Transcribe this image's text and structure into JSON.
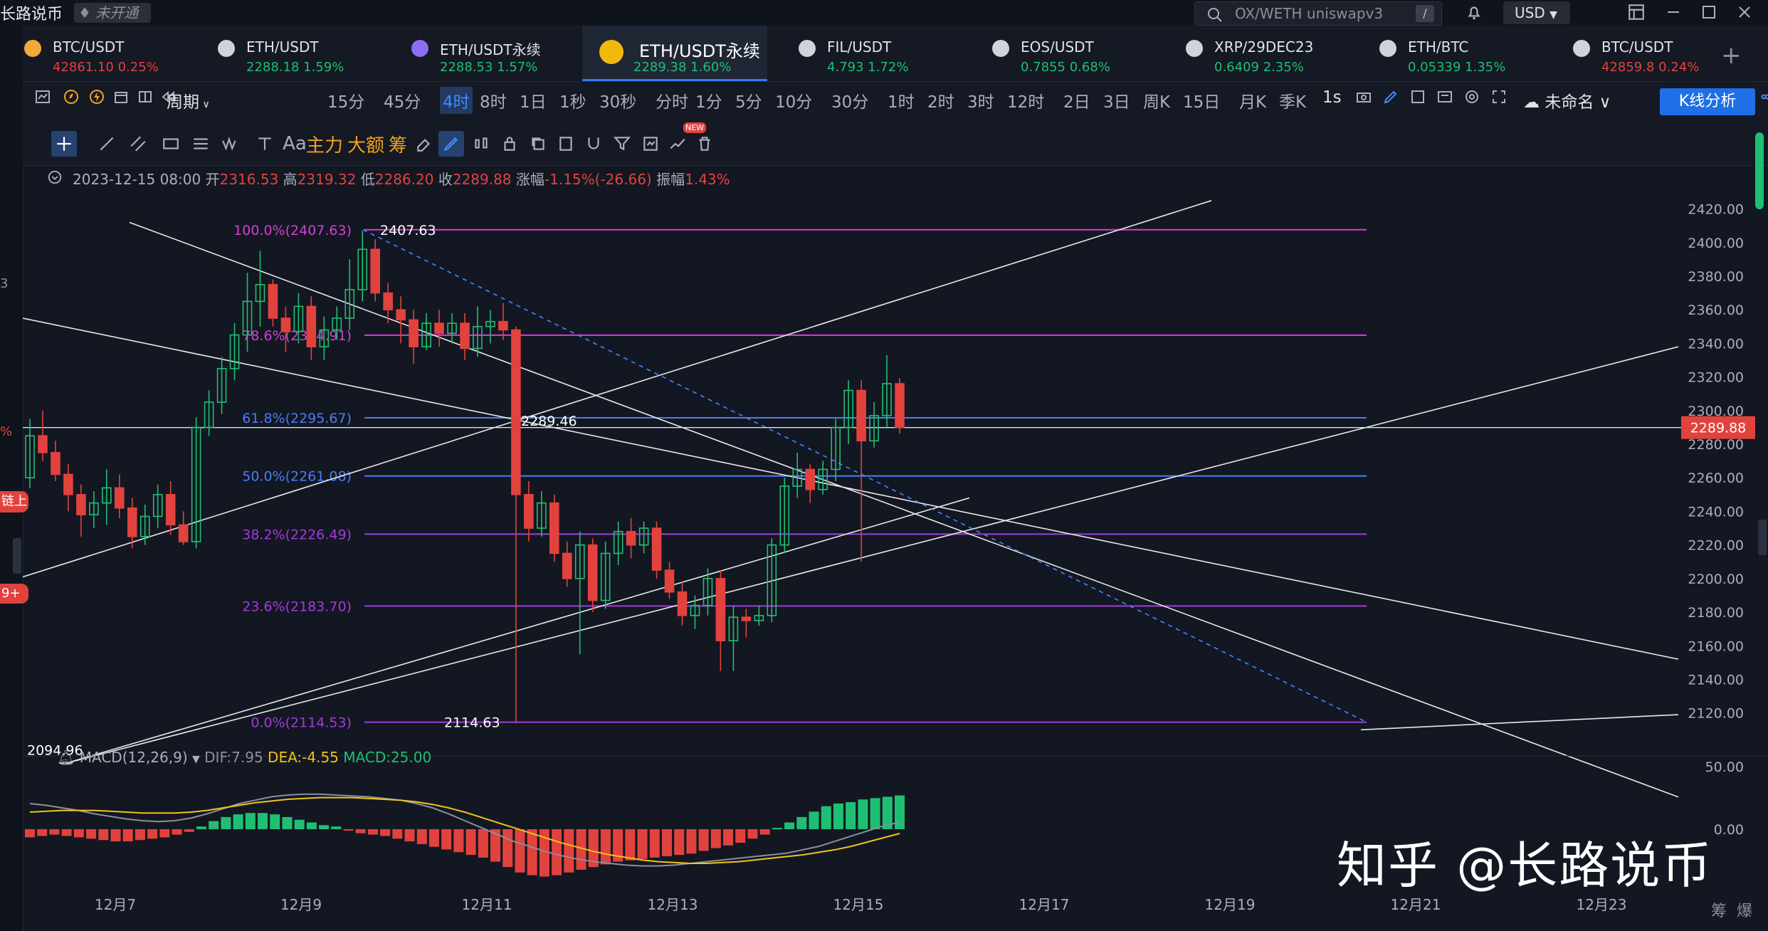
{
  "top": {
    "app_title": "长路说币",
    "status_badge": "未开通",
    "search_placeholder": "OX/WETH uniswapv3",
    "search_shortcut": "/",
    "currency": "USD"
  },
  "left_strip": {
    "tags": [
      "链上",
      "9+"
    ],
    "marks": [
      "%",
      "3"
    ]
  },
  "tickers": [
    {
      "symbol": "BTC/USDT",
      "price": "42861.10",
      "change": "0.25%",
      "color": "#e2423d",
      "icon_color": "#f2a93b"
    },
    {
      "symbol": "ETH/USDT",
      "price": "2288.18",
      "change": "1.59%",
      "color": "#1fbf73",
      "icon_color": "#cfd3da"
    },
    {
      "symbol": "ETH/USDT永续",
      "price": "2288.53",
      "change": "1.57%",
      "color": "#1fbf73",
      "icon_color": "#8f6cf5"
    },
    {
      "symbol": "ETH/USDT永续",
      "price": "2289.38",
      "change": "1.60%",
      "color": "#1fbf73",
      "icon_color": "#f0b90b",
      "active": true
    },
    {
      "symbol": "FIL/USDT",
      "price": "4.793",
      "change": "1.72%",
      "color": "#1fbf73",
      "icon_color": "#cfd3da"
    },
    {
      "symbol": "EOS/USDT",
      "price": "0.7855",
      "change": "0.68%",
      "color": "#1fbf73",
      "icon_color": "#cfd3da"
    },
    {
      "symbol": "XRP/29DEC23",
      "price": "0.6409",
      "change": "2.35%",
      "color": "#1fbf73",
      "icon_color": "#cfd3da"
    },
    {
      "symbol": "ETH/BTC",
      "price": "0.05339",
      "change": "1.35%",
      "color": "#1fbf73",
      "icon_color": "#cfd3da"
    },
    {
      "symbol": "BTC/USDT",
      "price": "42859.8",
      "change": "0.24%",
      "color": "#e2423d",
      "icon_color": "#cfd3da"
    }
  ],
  "periods": {
    "label": "周期",
    "items": [
      "15分",
      "45分",
      "4时",
      "8时",
      "1日",
      "1秒",
      "30秒",
      "分时",
      "1分",
      "5分",
      "10分",
      "30分",
      "1时",
      "2时",
      "3时",
      "12时",
      "2日",
      "3日",
      "周K",
      "15日",
      "月K",
      "季K"
    ],
    "selected": "4时",
    "right_items": [
      "1s",
      "未命名"
    ],
    "kline_button": "K线分析"
  },
  "drawing_toolbar": {
    "text_tools": [
      "主力",
      "大额",
      "筹"
    ],
    "font_tool": "Aa",
    "new_badge": "NEW"
  },
  "ohlc": {
    "date": "2023-12-15 08:00",
    "open_label": "开",
    "open": "2316.53",
    "high_label": "高",
    "high": "2319.32",
    "low_label": "低",
    "low": "2286.20",
    "close_label": "收",
    "close": "2289.88",
    "change_label": "涨幅",
    "change": "-1.15%(-26.66)",
    "amp_label": "振幅",
    "amp": "1.43%"
  },
  "macd": {
    "label": "MACD(12,26,9)",
    "dif": "DIF:7.95",
    "dea": "DEA:-4.55",
    "macd": "MACD:25.00",
    "axis": [
      "50.00",
      "0.00"
    ]
  },
  "colors": {
    "up": "#1fbf73",
    "down": "#e2423d",
    "accent": "#2f7cf6",
    "fib_magenta": "#d43fd3",
    "fib_blue": "#4a7cf6",
    "fib_purple": "#a33bd9"
  },
  "watermark": "知乎 @长路说币",
  "footer": {
    "icons": [
      "筹",
      "爆"
    ]
  },
  "chart_data": {
    "type": "candlestick",
    "symbol": "ETH/USDT永续",
    "interval": "4时",
    "current_price": "2289.88",
    "y_ticks": [
      "2420.00",
      "2400.00",
      "2380.00",
      "2360.00",
      "2340.00",
      "2320.00",
      "2300.00",
      "2280.00",
      "2260.00",
      "2240.00",
      "2220.00",
      "2200.00",
      "2180.00",
      "2160.00",
      "2140.00",
      "2120.00"
    ],
    "ylim": [
      2108,
      2430
    ],
    "x_ticks": [
      "12月7",
      "12月9",
      "12月11",
      "12月13",
      "12月15",
      "12月17",
      "12月19",
      "12月21",
      "12月23"
    ],
    "fib_levels": [
      {
        "label": "100.0%(2407.63)",
        "price": 2407.63
      },
      {
        "label": "78.6%(2344.91)",
        "price": 2344.91
      },
      {
        "label": "61.8%(2295.67)",
        "price": 2295.67
      },
      {
        "label": "50.0%(2261.08)",
        "price": 2261.08
      },
      {
        "label": "38.2%(2226.49)",
        "price": 2226.49
      },
      {
        "label": "23.6%(2183.70)",
        "price": 2183.7
      },
      {
        "label": "0.0%(2114.53)",
        "price": 2114.53
      }
    ],
    "price_labels": [
      "2407.63",
      "2289.46",
      "2114.63",
      "2094.96"
    ],
    "candles": [
      [
        2260,
        2285,
        2254,
        2295
      ],
      [
        2285,
        2275,
        2270,
        2300
      ],
      [
        2275,
        2262,
        2258,
        2282
      ],
      [
        2262,
        2250,
        2240,
        2268
      ],
      [
        2250,
        2238,
        2225,
        2256
      ],
      [
        2238,
        2245,
        2230,
        2252
      ],
      [
        2245,
        2254,
        2232,
        2265
      ],
      [
        2254,
        2242,
        2236,
        2262
      ],
      [
        2242,
        2225,
        2218,
        2248
      ],
      [
        2225,
        2237,
        2220,
        2244
      ],
      [
        2237,
        2250,
        2230,
        2256
      ],
      [
        2250,
        2232,
        2226,
        2258
      ],
      [
        2232,
        2222,
        2220,
        2240
      ],
      [
        2222,
        2290,
        2218,
        2296
      ],
      [
        2290,
        2305,
        2285,
        2312
      ],
      [
        2305,
        2325,
        2298,
        2332
      ],
      [
        2325,
        2345,
        2318,
        2352
      ],
      [
        2345,
        2365,
        2335,
        2382
      ],
      [
        2365,
        2375,
        2350,
        2395
      ],
      [
        2375,
        2355,
        2350,
        2378
      ],
      [
        2355,
        2347,
        2335,
        2362
      ],
      [
        2347,
        2362,
        2340,
        2370
      ],
      [
        2362,
        2338,
        2330,
        2368
      ],
      [
        2338,
        2348,
        2330,
        2356
      ],
      [
        2348,
        2355,
        2342,
        2362
      ],
      [
        2355,
        2372,
        2348,
        2390
      ],
      [
        2372,
        2396,
        2365,
        2407
      ],
      [
        2396,
        2370,
        2365,
        2402
      ],
      [
        2370,
        2360,
        2352,
        2376
      ],
      [
        2360,
        2354,
        2340,
        2368
      ],
      [
        2354,
        2338,
        2328,
        2360
      ],
      [
        2338,
        2352,
        2336,
        2358
      ],
      [
        2352,
        2346,
        2338,
        2360
      ],
      [
        2346,
        2352,
        2340,
        2358
      ],
      [
        2352,
        2337,
        2330,
        2358
      ],
      [
        2337,
        2350,
        2332,
        2362
      ],
      [
        2350,
        2353,
        2340,
        2360
      ],
      [
        2353,
        2348,
        2342,
        2364
      ],
      [
        2348,
        2250,
        2114,
        2350
      ],
      [
        2250,
        2230,
        2222,
        2258
      ],
      [
        2230,
        2245,
        2225,
        2252
      ],
      [
        2245,
        2215,
        2210,
        2250
      ],
      [
        2215,
        2200,
        2195,
        2222
      ],
      [
        2200,
        2220,
        2155,
        2228
      ],
      [
        2220,
        2187,
        2180,
        2224
      ],
      [
        2187,
        2215,
        2182,
        2222
      ],
      [
        2215,
        2228,
        2208,
        2234
      ],
      [
        2228,
        2220,
        2212,
        2236
      ],
      [
        2220,
        2230,
        2215,
        2234
      ],
      [
        2230,
        2205,
        2200,
        2234
      ],
      [
        2205,
        2192,
        2188,
        2210
      ],
      [
        2192,
        2178,
        2172,
        2198
      ],
      [
        2178,
        2184,
        2170,
        2190
      ],
      [
        2184,
        2200,
        2178,
        2206
      ],
      [
        2200,
        2163,
        2145,
        2205
      ],
      [
        2163,
        2177,
        2145,
        2184
      ],
      [
        2177,
        2175,
        2165,
        2182
      ],
      [
        2175,
        2178,
        2172,
        2184
      ],
      [
        2178,
        2220,
        2174,
        2224
      ],
      [
        2220,
        2255,
        2215,
        2260
      ],
      [
        2255,
        2265,
        2248,
        2275
      ],
      [
        2265,
        2253,
        2245,
        2268
      ],
      [
        2253,
        2265,
        2250,
        2270
      ],
      [
        2265,
        2290,
        2258,
        2295
      ],
      [
        2290,
        2312,
        2280,
        2318
      ],
      [
        2312,
        2282,
        2210,
        2318
      ],
      [
        2282,
        2297,
        2278,
        2305
      ],
      [
        2297,
        2316,
        2290,
        2333
      ],
      [
        2316,
        2289.88,
        2286.2,
        2319.32
      ]
    ],
    "macd_hist": [
      -6,
      -5,
      -4,
      -5,
      -6,
      -7,
      -8,
      -9,
      -9,
      -8,
      -7,
      -6,
      -4,
      -2,
      2,
      6,
      9,
      11,
      12,
      12,
      11,
      9,
      7,
      5,
      3,
      2,
      -1,
      -3,
      -4,
      -5,
      -7,
      -9,
      -11,
      -13,
      -15,
      -17,
      -19,
      -21,
      -24,
      -28,
      -32,
      -34,
      -35,
      -34,
      -32,
      -30,
      -28,
      -26,
      -24,
      -23,
      -22,
      -21,
      -20,
      -19,
      -18,
      -16,
      -14,
      -12,
      -10,
      -7,
      -4,
      1,
      5,
      9,
      13,
      17,
      19,
      20,
      22,
      23,
      24,
      25
    ],
    "dif_line": [
      30,
      28,
      25,
      22,
      18,
      15,
      12,
      10,
      9,
      10,
      13,
      18,
      24,
      30,
      34,
      38,
      40,
      41,
      41,
      40,
      39,
      38,
      36,
      34,
      30,
      25,
      18,
      10,
      2,
      -6,
      -14,
      -20,
      -26,
      -31,
      -35,
      -38,
      -40,
      -42,
      -43,
      -43,
      -42,
      -40,
      -38,
      -36,
      -34,
      -32,
      -30,
      -28,
      -24,
      -20,
      -14,
      -8,
      -2,
      4,
      8
    ],
    "dea_line": [
      20,
      21,
      22,
      22,
      22,
      21,
      20,
      19,
      19,
      19,
      20,
      22,
      25,
      28,
      31,
      33,
      35,
      36,
      37,
      37,
      37,
      36,
      35,
      34,
      32,
      29,
      25,
      20,
      14,
      8,
      2,
      -4,
      -10,
      -16,
      -21,
      -26,
      -30,
      -33,
      -36,
      -38,
      -39,
      -40,
      -40,
      -39,
      -38,
      -36,
      -34,
      -32,
      -30,
      -27,
      -24,
      -20,
      -15,
      -10,
      -5
    ]
  }
}
